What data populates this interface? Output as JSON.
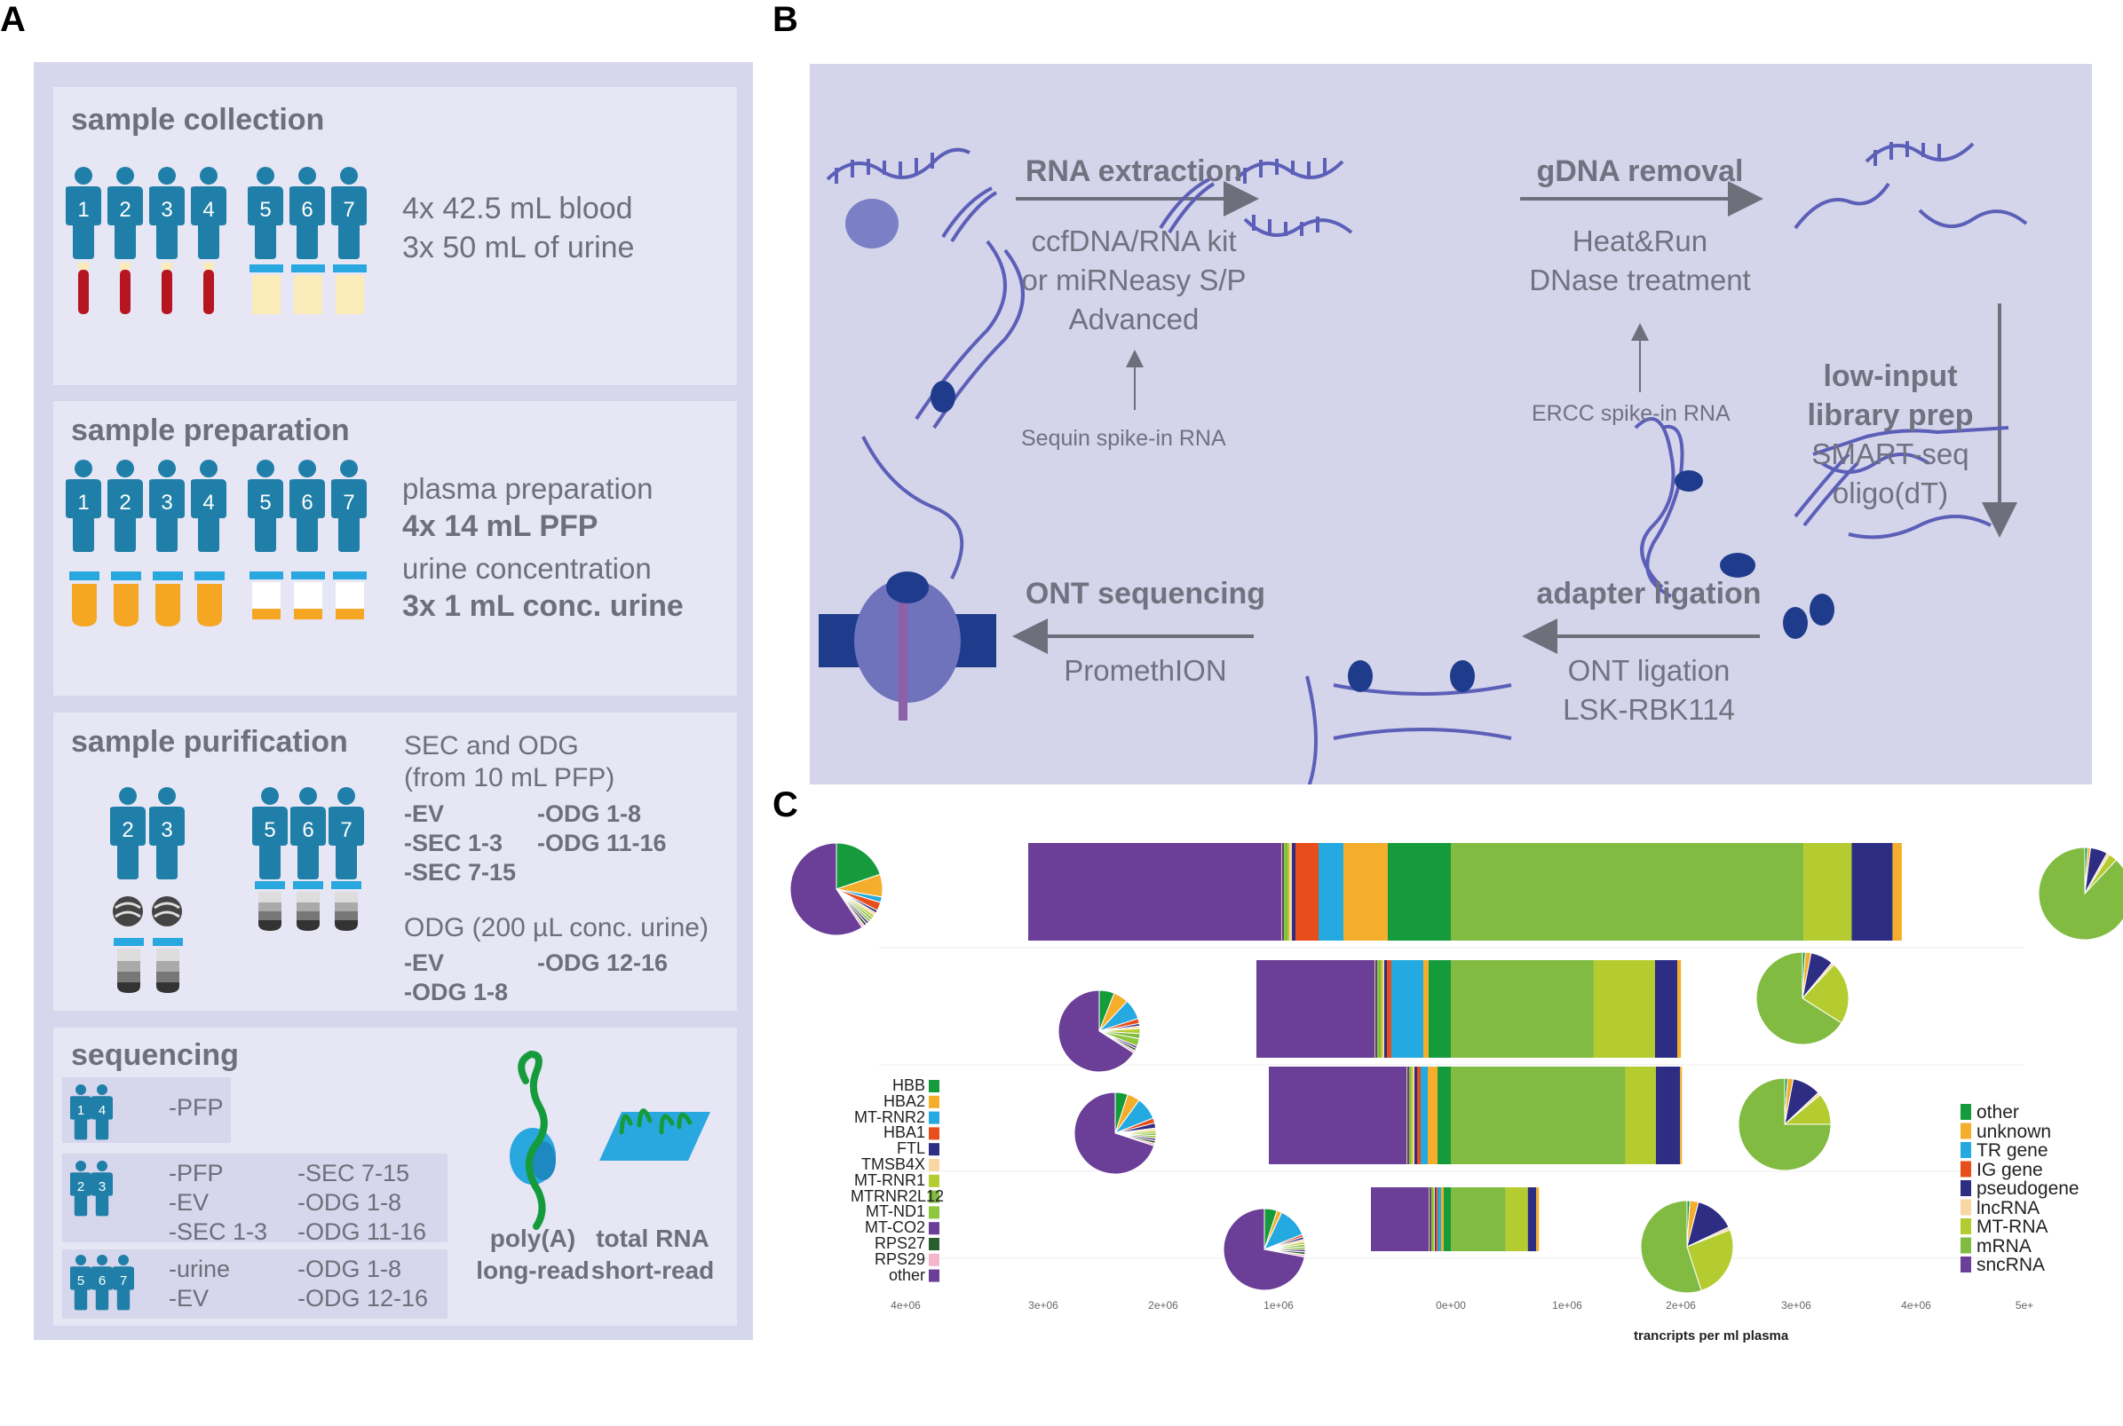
{
  "panels": {
    "a": "A",
    "b": "B",
    "c": "C"
  },
  "collection": {
    "heading": "sample collection",
    "donors": [
      "1",
      "2",
      "3",
      "4",
      "5",
      "6",
      "7"
    ],
    "line1": "4x 42.5 mL blood",
    "line2": "3x 50 mL of urine"
  },
  "preparation": {
    "heading": "sample preparation",
    "donors": [
      "1",
      "2",
      "3",
      "4",
      "5",
      "6",
      "7"
    ],
    "plasma_label": "plasma preparation",
    "plasma_value": "4x 14 mL PFP",
    "urine_label": "urine concentration",
    "urine_value": "3x 1 mL conc. urine"
  },
  "purification": {
    "heading": "sample purification",
    "donors_plasma": [
      "2",
      "3"
    ],
    "donors_urine": [
      "5",
      "6",
      "7"
    ],
    "sec_title_1": "SEC and ODG",
    "sec_title_2": "(from 10 mL PFP)",
    "sec_col1": [
      "-EV",
      "-SEC 1-3",
      "-SEC 7-15"
    ],
    "sec_col2": [
      "-ODG 1-8",
      "-ODG 11-16"
    ],
    "odg_title": "ODG (200 µL conc. urine)",
    "odg_col1": [
      "-EV",
      "-ODG 1-8"
    ],
    "odg_col2": [
      "-ODG 12-16"
    ]
  },
  "sequencing": {
    "heading": "sequencing",
    "group1": {
      "donors": [
        "1",
        "4"
      ],
      "col1": [
        "-PFP"
      ]
    },
    "group2": {
      "donors": [
        "2",
        "3"
      ],
      "col1": [
        "-PFP",
        "-EV",
        "-SEC 1-3"
      ],
      "col2": [
        "-SEC 7-15",
        "-ODG 1-8",
        "-ODG 11-16"
      ]
    },
    "group3": {
      "donors": [
        "5",
        "6",
        "7"
      ],
      "col1": [
        "-urine",
        "-EV"
      ],
      "col2": [
        "-ODG 1-8",
        "-ODG 12-16"
      ]
    },
    "longread_1": "poly(A)",
    "longread_2": "long-read",
    "shortread_1": "total RNA",
    "shortread_2": "short-read"
  },
  "workflow": {
    "rna_extraction": "RNA extraction",
    "rna_kit_1": "ccfDNA/RNA kit",
    "rna_kit_2": "or miRNeasy S/P",
    "rna_kit_3": "Advanced",
    "sequin": "Sequin spike-in RNA",
    "gdna_removal": "gDNA removal",
    "dnase_1": "Heat&Run",
    "dnase_2": "DNase treatment",
    "ercc": "ERCC spike-in RNA",
    "library_1": "low-input",
    "library_2": "library prep",
    "library_3": "SMART-seq",
    "library_4": "oligo(dT)",
    "adapter": "adapter ligation",
    "ont_lig_1": "ONT ligation",
    "ont_lig_2": "LSK-RBK114",
    "ont_seq": "ONT sequencing",
    "promethion": "PromethION"
  },
  "colors": {
    "box": "#e6e6f4",
    "frame": "#d6d6ec",
    "workflow_bg": "#d4d4ea",
    "person": "#1f7fa8",
    "blood": "#b5161f",
    "urine_light": "#faebb8",
    "urine_orange": "#f5a623",
    "cap": "#29a8e0",
    "rna": "#5b5fb8"
  },
  "chart_data": {
    "type": "bar",
    "orientation": "horizontal-stacked",
    "xlabel": "trancripts per ml plasma",
    "x_ticks": [
      "4e+06",
      "3e+06",
      "2e+06",
      "1e+06",
      "0e+00",
      "1e+06",
      "2e+06",
      "3e+06",
      "4e+06",
      "5e+"
    ],
    "left_legend": [
      "HBB",
      "HBA2",
      "MT-RNR2",
      "HBA1",
      "FTL",
      "TMSB4X",
      "MT-RNR1",
      "MTRNR2L12",
      "MT-ND1",
      "MT-CO2",
      "RPS27",
      "RPS29",
      "other"
    ],
    "left_colors": [
      "#169b3c",
      "#f5ae2c",
      "#24a9e1",
      "#e84e1b",
      "#2e2d84",
      "#f8d7a5",
      "#b5cc31",
      "#82bb42",
      "#8dc63f",
      "#6b3f98",
      "#2a5e2e",
      "#f3b6cc",
      "#6b3f98"
    ],
    "right_legend": [
      "other",
      "unknown",
      "TR gene",
      "IG gene",
      "pseudogene",
      "lncRNA",
      "MT-RNA",
      "mRNA",
      "sncRNA"
    ],
    "right_colors": [
      "#169b3c",
      "#f5ae2c",
      "#24a9e1",
      "#e84e1b",
      "#2e2d84",
      "#f8d7a5",
      "#b5cc31",
      "#82bb42",
      "#6b3f98"
    ],
    "left_rows": [
      [
        0.071,
        0.05,
        0.028,
        0.026,
        0.004,
        0.003,
        0.002,
        0.002,
        0.002,
        0.001,
        0.001,
        0.001,
        0.285
      ],
      [
        0.025,
        0.006,
        0.036,
        0.005,
        0.003,
        0.002,
        0.002,
        0.002,
        0.002,
        0.001,
        0.001,
        0.001,
        0.133
      ],
      [
        0.015,
        0.011,
        0.008,
        0.004,
        0.003,
        0.002,
        0.002,
        0.001,
        0.001,
        0.001,
        0.001,
        0.001,
        0.155
      ],
      [
        0.008,
        0.003,
        0.004,
        0.002,
        0.001,
        0.001,
        0.001,
        0.001,
        0.001,
        0.001,
        0.001,
        0.001,
        0.065
      ]
    ],
    "right_rows": [
      [
        0.38,
        0.052,
        0.044,
        0.01
      ],
      [
        0.154,
        0.066,
        0.024,
        0.004
      ],
      [
        0.188,
        0.033,
        0.026,
        0.002
      ],
      [
        0.059,
        0.024,
        0.009,
        0.003
      ]
    ],
    "left_pies": [
      [
        0.2,
        0.08,
        0.02,
        0.03,
        0.01,
        0.01,
        0.01,
        0.01,
        0.01,
        0.01,
        0.01,
        0.01,
        0.6
      ],
      [
        0.06,
        0.06,
        0.08,
        0.02,
        0.01,
        0.01,
        0.02,
        0.02,
        0.03,
        0.01,
        0.01,
        0.01,
        0.66
      ],
      [
        0.05,
        0.05,
        0.09,
        0.02,
        0.02,
        0.01,
        0.01,
        0.01,
        0.01,
        0.01,
        0.01,
        0.01,
        0.7
      ],
      [
        0.05,
        0.02,
        0.12,
        0.01,
        0.01,
        0.01,
        0.01,
        0.01,
        0.01,
        0.01,
        0.01,
        0.01,
        0.72
      ]
    ],
    "right_pies": [
      [
        0.01,
        0.01,
        0.0,
        0.0,
        0.06,
        0.01,
        0.03,
        0.88,
        0.0
      ],
      [
        0.01,
        0.02,
        0.0,
        0.0,
        0.08,
        0.01,
        0.22,
        0.66,
        0.0
      ],
      [
        0.01,
        0.02,
        0.0,
        0.0,
        0.1,
        0.01,
        0.11,
        0.75,
        0.0
      ],
      [
        0.01,
        0.03,
        0.0,
        0.0,
        0.14,
        0.01,
        0.26,
        0.55,
        0.0
      ]
    ]
  }
}
